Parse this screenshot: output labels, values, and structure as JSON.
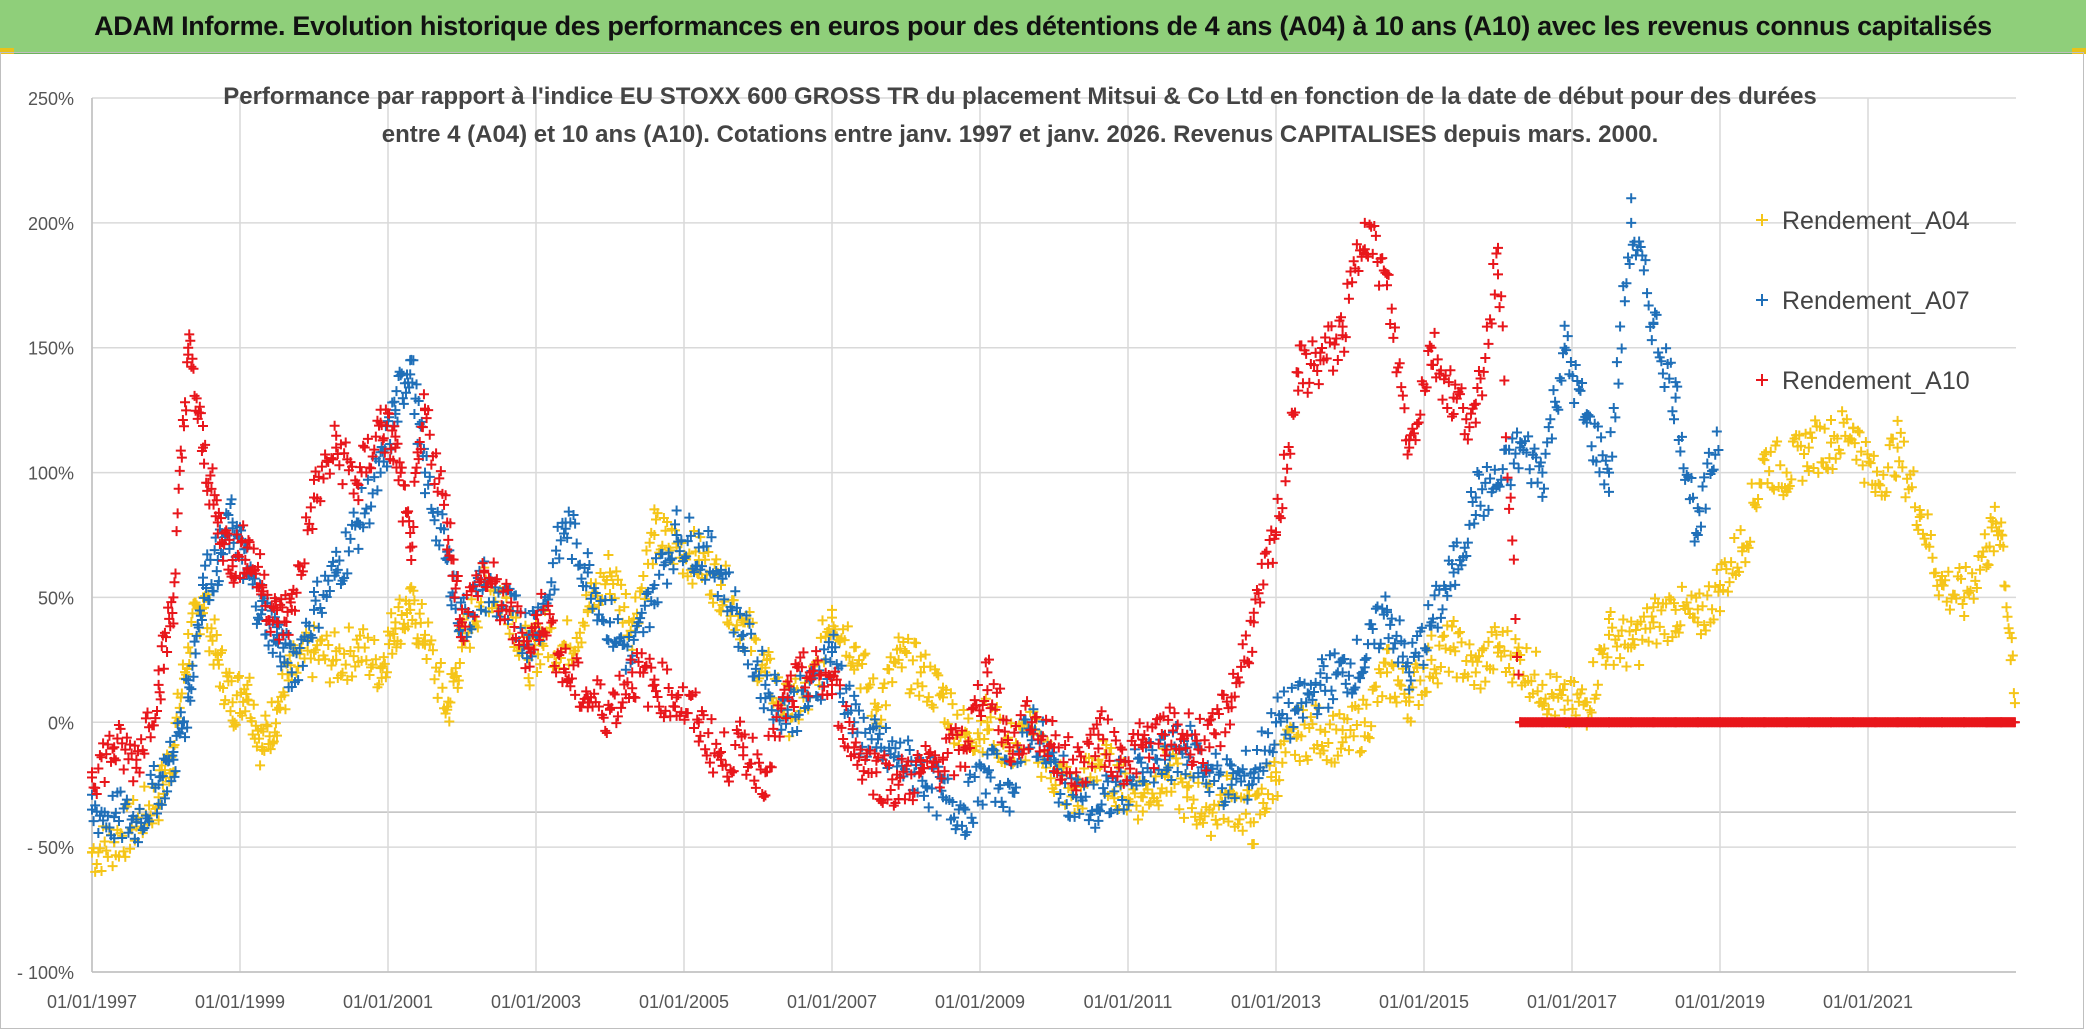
{
  "banner": {
    "title": "ADAM Informe. Evolution historique des performances en euros pour des détentions de 4 ans (A04) à 10 ans (A10) avec les revenus connus capitalisés"
  },
  "chart_data": {
    "type": "scatter",
    "title_line1": "Performance par rapport à l'indice EU STOXX 600 GROSS TR  du placement Mitsui & Co Ltd en fonction de la date de début pour des durées",
    "title_line2": "entre 4 (A04) et 10 ans (A10). Cotations entre janv. 1997 et janv. 2026. Revenus CAPITALISES depuis mars. 2000.",
    "xlabel": "",
    "ylabel": "",
    "xlim": [
      1997.0,
      2023.0
    ],
    "ylim": [
      -100,
      250
    ],
    "y_ticks": [
      250,
      200,
      150,
      100,
      50,
      0,
      -50,
      -100
    ],
    "y_tick_labels": [
      "250%",
      "200%",
      "150%",
      "100%",
      "50%",
      "0%",
      "- 50%",
      "- 100%"
    ],
    "x_ticks": [
      1997,
      1999,
      2001,
      2003,
      2005,
      2007,
      2009,
      2011,
      2013,
      2015,
      2017,
      2019,
      2021
    ],
    "x_tick_labels": [
      "01/01/1997",
      "01/01/1999",
      "01/01/2001",
      "01/01/2003",
      "01/01/2005",
      "01/01/2007",
      "01/01/2009",
      "01/01/2011",
      "01/01/2013",
      "01/01/2015",
      "01/01/2017",
      "01/01/2019",
      "01/01/2021"
    ],
    "grid": true,
    "legend_position": "top-right",
    "series": [
      {
        "name": "Rendement_A04",
        "color": "#f5c518",
        "marker": "+",
        "x": [
          1997.0,
          1997.3,
          1997.6,
          1997.9,
          1998.1,
          1998.3,
          1998.5,
          1998.7,
          1998.9,
          1999.1,
          1999.3,
          1999.5,
          1999.7,
          2000.0,
          2000.3,
          2000.6,
          2000.9,
          2001.1,
          2001.3,
          2001.5,
          2001.8,
          2002.0,
          2002.3,
          2002.6,
          2002.9,
          2003.1,
          2003.4,
          2003.7,
          2004.0,
          2004.3,
          2004.6,
          2004.9,
          2005.2,
          2005.5,
          2005.8,
          2006.1,
          2006.4,
          2006.7,
          2007.0,
          2007.3,
          2007.6,
          2007.9,
          2008.2,
          2008.5,
          2008.8,
          2009.1,
          2009.4,
          2009.7,
          2010.0,
          2010.3,
          2010.6,
          2010.9,
          2011.2,
          2011.5,
          2011.8,
          2012.1,
          2012.4,
          2012.7,
          2013.0,
          2013.3,
          2013.6,
          2013.9,
          2014.2,
          2014.5,
          2014.8,
          2015.1,
          2015.4,
          2015.7,
          2016.0,
          2016.3,
          2016.6,
          2016.9,
          2017.2,
          2017.5,
          2017.8,
          2018.1,
          2018.4,
          2018.7,
          2019.0,
          2019.3,
          2019.6,
          2019.9,
          2020.2,
          2020.5,
          2020.8,
          2021.1,
          2021.4,
          2021.7,
          2022.0,
          2022.3,
          2022.6,
          2022.8,
          2023.0
        ],
        "values": [
          -52,
          -48,
          -40,
          -30,
          -10,
          30,
          50,
          25,
          8,
          15,
          -10,
          5,
          20,
          28,
          25,
          30,
          22,
          40,
          45,
          35,
          5,
          30,
          55,
          50,
          25,
          35,
          30,
          45,
          60,
          40,
          75,
          70,
          65,
          55,
          40,
          20,
          5,
          10,
          45,
          30,
          5,
          25,
          20,
          10,
          -5,
          0,
          -10,
          -5,
          -20,
          -30,
          -15,
          -25,
          -30,
          -20,
          -30,
          -35,
          -30,
          -40,
          -20,
          -5,
          -3,
          -8,
          0,
          20,
          10,
          25,
          30,
          20,
          30,
          25,
          15,
          5,
          8,
          35,
          30,
          40,
          45,
          40,
          55,
          70,
          105,
          100,
          110,
          112,
          118,
          95,
          110,
          85,
          55,
          50,
          70,
          80,
          0
        ]
      },
      {
        "name": "Rendement_A07",
        "color": "#1f6fb8",
        "marker": "+",
        "x": [
          1997.0,
          1997.3,
          1997.6,
          1997.9,
          1998.1,
          1998.3,
          1998.5,
          1998.7,
          1998.9,
          1999.1,
          1999.3,
          1999.5,
          1999.7,
          2000.0,
          2000.3,
          2000.6,
          2000.9,
          2001.1,
          2001.3,
          2001.5,
          2001.8,
          2002.0,
          2002.3,
          2002.6,
          2002.9,
          2003.1,
          2003.4,
          2003.7,
          2004.0,
          2004.3,
          2004.6,
          2004.9,
          2005.2,
          2005.5,
          2005.8,
          2006.1,
          2006.4,
          2006.7,
          2007.0,
          2007.3,
          2007.6,
          2007.9,
          2008.2,
          2008.5,
          2008.8,
          2009.1,
          2009.4,
          2009.7,
          2010.0,
          2010.3,
          2010.6,
          2010.9,
          2011.2,
          2011.5,
          2011.8,
          2012.1,
          2012.4,
          2012.7,
          2013.0,
          2013.3,
          2013.6,
          2013.9,
          2014.2,
          2014.5,
          2014.8,
          2015.1,
          2015.4,
          2015.7,
          2016.0,
          2016.3,
          2016.6,
          2016.9,
          2017.2,
          2017.5,
          2017.8,
          2018.1,
          2018.4,
          2018.7,
          2019.0
        ],
        "values": [
          -35,
          -38,
          -40,
          -25,
          -15,
          10,
          55,
          65,
          80,
          60,
          45,
          35,
          20,
          45,
          60,
          80,
          100,
          125,
          145,
          100,
          65,
          40,
          55,
          45,
          35,
          45,
          80,
          60,
          40,
          25,
          55,
          75,
          70,
          60,
          35,
          15,
          5,
          10,
          30,
          0,
          -10,
          -15,
          -20,
          -30,
          -35,
          -20,
          -25,
          0,
          -20,
          -30,
          -35,
          -25,
          -20,
          -15,
          -10,
          -20,
          -25,
          -20,
          0,
          5,
          15,
          20,
          25,
          45,
          20,
          40,
          60,
          90,
          95,
          110,
          100,
          150,
          120,
          100,
          200,
          160,
          130,
          75,
          120
        ]
      },
      {
        "name": "Rendement_A10",
        "color": "#e8161b",
        "marker": "+",
        "x": [
          1997.0,
          1997.3,
          1997.6,
          1997.9,
          1998.1,
          1998.3,
          1998.5,
          1998.7,
          1998.9,
          1999.1,
          1999.3,
          1999.5,
          1999.7,
          2000.0,
          2000.3,
          2000.6,
          2000.9,
          2001.1,
          2001.3,
          2001.5,
          2001.8,
          2002.0,
          2002.3,
          2002.6,
          2002.9,
          2003.1,
          2003.4,
          2003.7,
          2004.0,
          2004.3,
          2004.6,
          2004.9,
          2005.2,
          2005.5,
          2005.8,
          2006.1,
          2006.4,
          2006.7,
          2007.0,
          2007.3,
          2007.6,
          2007.9,
          2008.2,
          2008.5,
          2008.8,
          2009.1,
          2009.4,
          2009.7,
          2010.0,
          2010.3,
          2010.6,
          2010.9,
          2011.2,
          2011.5,
          2011.8,
          2012.1,
          2012.4,
          2012.7,
          2013.0,
          2013.3,
          2013.6,
          2013.9,
          2014.2,
          2014.5,
          2014.8,
          2015.1,
          2015.4,
          2015.7,
          2016.0,
          2016.3,
          2016.6,
          2016.9,
          2017.2,
          2017.5,
          2017.8,
          2018.1,
          2018.4,
          2018.7,
          2019.0,
          2019.3,
          2019.6,
          2019.9,
          2020.2,
          2020.5,
          2020.8,
          2021.1,
          2021.4,
          2021.7,
          2022.0,
          2022.3,
          2022.6,
          2022.8,
          2023.0
        ],
        "values": [
          -20,
          -10,
          -15,
          15,
          50,
          150,
          110,
          80,
          65,
          70,
          55,
          40,
          45,
          90,
          110,
          95,
          120,
          110,
          70,
          125,
          80,
          40,
          60,
          45,
          30,
          45,
          20,
          10,
          5,
          20,
          15,
          10,
          0,
          -15,
          -10,
          -20,
          10,
          20,
          15,
          -10,
          -20,
          -25,
          -20,
          -15,
          -10,
          20,
          -10,
          0,
          -10,
          -20,
          -5,
          -15,
          -10,
          -5,
          -5,
          -10,
          10,
          40,
          75,
          140,
          145,
          155,
          200,
          175,
          110,
          150,
          130,
          120,
          190,
          0,
          0,
          0,
          0,
          0,
          0,
          0,
          0,
          0,
          0,
          0,
          0,
          0,
          0,
          0,
          0,
          0,
          0,
          0,
          0,
          0,
          0,
          0,
          0
        ]
      }
    ]
  }
}
